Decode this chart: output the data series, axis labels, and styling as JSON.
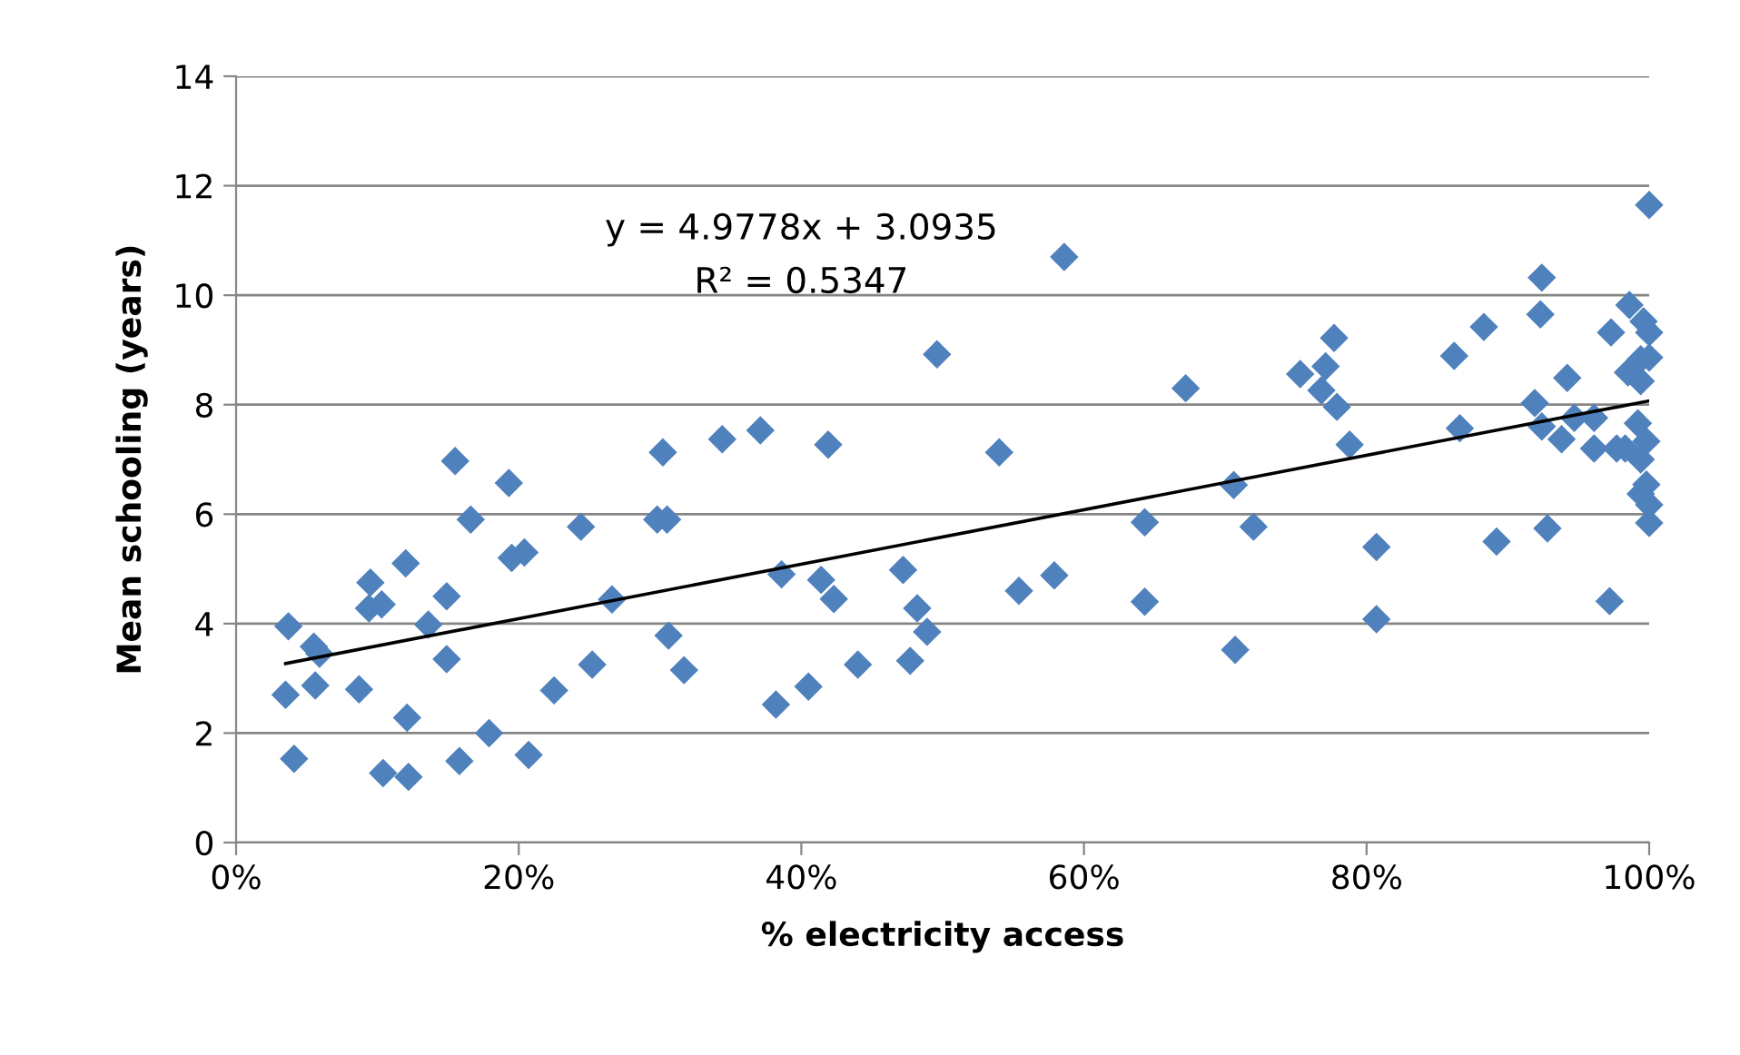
{
  "chart_data": {
    "type": "scatter",
    "xlabel": "% electricity access",
    "ylabel": "Mean schooling (years)",
    "annotations": [
      "y = 4.9778x + 3.0935",
      "R² = 0.5347"
    ],
    "xlim": [
      0,
      1
    ],
    "xticks": [
      {
        "value": 0,
        "label": "0%"
      },
      {
        "value": 0.2,
        "label": "20%"
      },
      {
        "value": 0.4,
        "label": "40%"
      },
      {
        "value": 0.6,
        "label": "60%"
      },
      {
        "value": 0.8,
        "label": "80%"
      },
      {
        "value": 1,
        "label": "100%"
      }
    ],
    "ylim": [
      0,
      14
    ],
    "yticks": [
      0,
      2,
      4,
      6,
      8,
      10,
      12,
      14
    ],
    "grid": "y",
    "legend": false,
    "series": [
      {
        "marker": "diamond",
        "color": "#4f81bd",
        "x": [
          0.035,
          0.037,
          0.041,
          0.055,
          0.056,
          0.059,
          0.087,
          0.095,
          0.094,
          0.103,
          0.104,
          0.12,
          0.121,
          0.122,
          0.136,
          0.149,
          0.149,
          0.155,
          0.158,
          0.166,
          0.179,
          0.193,
          0.195,
          0.204,
          0.207,
          0.225,
          0.244,
          0.252,
          0.266,
          0.298,
          0.302,
          0.305,
          0.306,
          0.317,
          0.344,
          0.371,
          0.419,
          0.386,
          0.414,
          0.423,
          0.472,
          0.482,
          0.489,
          0.496,
          0.554,
          0.579,
          0.382,
          0.405,
          0.44,
          0.477,
          0.586,
          0.54,
          0.643,
          0.643,
          0.672,
          0.706,
          0.72,
          0.707,
          0.753,
          0.771,
          0.777,
          0.768,
          0.779,
          0.788,
          0.807,
          0.807,
          0.862,
          0.883,
          0.866,
          0.892,
          0.924,
          0.923,
          0.919,
          0.924,
          0.928,
          0.942,
          0.938,
          0.947,
          0.961,
          0.961,
          0.972,
          0.973,
          0.986,
          0.996,
          1.0,
          0.985,
          0.994,
          1.0,
          0.994,
          0.983,
          0.992,
          0.998,
          0.994,
          0.998,
          0.994,
          1.0,
          1.0,
          0.977,
          1.0
        ],
        "values": [
          2.7,
          3.95,
          1.53,
          3.58,
          2.87,
          3.45,
          2.8,
          4.75,
          4.28,
          4.35,
          1.27,
          5.1,
          2.28,
          1.2,
          3.98,
          4.5,
          3.35,
          6.97,
          1.49,
          5.9,
          2.0,
          6.57,
          5.2,
          5.3,
          1.6,
          2.78,
          5.77,
          3.25,
          4.44,
          5.9,
          7.13,
          5.9,
          3.78,
          3.15,
          7.37,
          7.53,
          7.27,
          4.9,
          4.8,
          4.45,
          4.98,
          4.28,
          3.85,
          8.92,
          4.6,
          4.88,
          2.52,
          2.85,
          3.25,
          3.32,
          10.7,
          7.13,
          5.85,
          4.4,
          8.3,
          6.53,
          5.77,
          3.52,
          8.56,
          8.7,
          9.22,
          8.26,
          7.96,
          7.27,
          5.4,
          4.08,
          8.89,
          9.42,
          7.57,
          5.5,
          10.32,
          9.65,
          8.03,
          7.6,
          5.74,
          8.49,
          7.37,
          7.76,
          7.76,
          7.2,
          4.41,
          9.32,
          9.82,
          9.52,
          9.32,
          8.59,
          8.83,
          8.86,
          8.43,
          7.2,
          7.66,
          7.33,
          7.0,
          6.54,
          6.37,
          6.17,
          5.84,
          7.2,
          11.65
        ]
      },
      {
        "type": "line",
        "color": "#000000",
        "x": [
          0.035,
          1.0
        ],
        "values": [
          3.27,
          8.07
        ]
      }
    ]
  }
}
